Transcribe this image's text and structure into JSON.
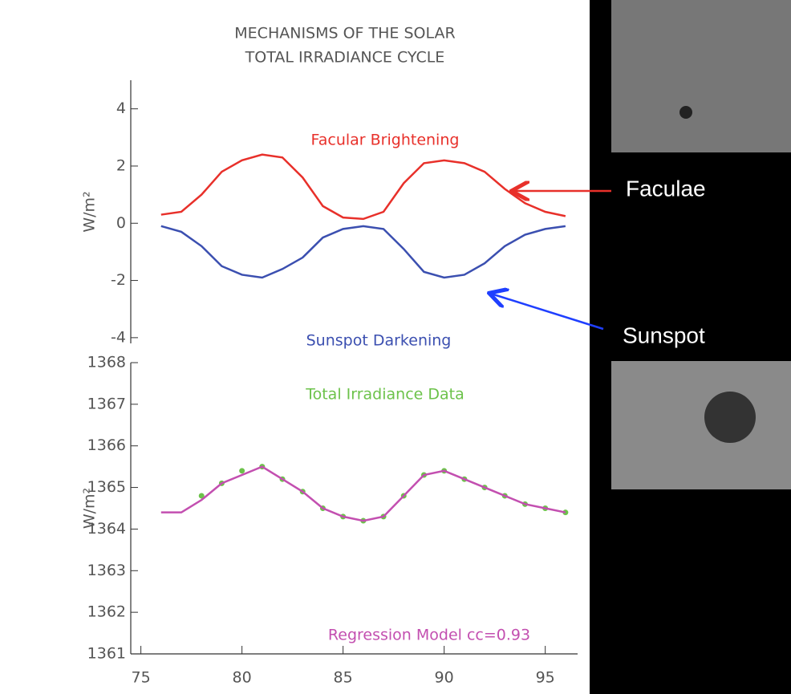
{
  "chart_data": [
    {
      "type": "line",
      "title": [
        "MECHANISMS OF THE SOLAR",
        "TOTAL IRRADIANCE CYCLE"
      ],
      "y_label": "W/m²",
      "x": [
        76,
        77,
        78,
        79,
        80,
        81,
        82,
        83,
        84,
        85,
        86,
        87,
        88,
        89,
        90,
        91,
        92,
        93,
        94,
        95,
        96
      ],
      "xlim": [
        74.5,
        96.6
      ],
      "ylim": [
        -4.2,
        5
      ],
      "yticks": [
        -4,
        -2,
        0,
        2,
        4
      ],
      "series": [
        {
          "name": "Facular Brightening",
          "color": "#e8302a",
          "values": [
            0.3,
            0.4,
            1.0,
            1.8,
            2.2,
            2.4,
            2.3,
            1.6,
            0.6,
            0.2,
            0.15,
            0.4,
            1.4,
            2.1,
            2.2,
            2.1,
            1.8,
            1.2,
            0.7,
            0.4,
            0.25
          ]
        },
        {
          "name": "Sunspot Darkening",
          "color": "#3b4fb0",
          "values": [
            -0.1,
            -0.3,
            -0.8,
            -1.5,
            -1.8,
            -1.9,
            -1.6,
            -1.2,
            -0.5,
            -0.2,
            -0.1,
            -0.2,
            -0.9,
            -1.7,
            -1.9,
            -1.8,
            -1.4,
            -0.8,
            -0.4,
            -0.2,
            -0.1
          ]
        }
      ]
    },
    {
      "type": "line",
      "y_label": "W/m²",
      "x": [
        76,
        77,
        78,
        79,
        80,
        81,
        82,
        83,
        84,
        85,
        86,
        87,
        88,
        89,
        90,
        91,
        92,
        93,
        94,
        95,
        96
      ],
      "xlim": [
        74.5,
        96.6
      ],
      "xticks": [
        75,
        80,
        85,
        90,
        95
      ],
      "ylim": [
        1361,
        1368
      ],
      "yticks": [
        1361,
        1362,
        1363,
        1364,
        1365,
        1366,
        1367,
        1368
      ],
      "series": [
        {
          "name": "Total Irradiance Data",
          "type": "scatter",
          "color": "#6cc24a",
          "values": [
            null,
            null,
            1364.8,
            1365.1,
            1365.4,
            1365.5,
            1365.2,
            1364.9,
            1364.5,
            1364.3,
            1364.2,
            1364.3,
            1364.8,
            1365.3,
            1365.4,
            1365.2,
            1365.0,
            1364.8,
            1364.6,
            1364.5,
            1364.4
          ]
        },
        {
          "name": "Regression Model cc=0.93",
          "type": "line",
          "color": "#c34fb0",
          "values": [
            1364.4,
            1364.4,
            1364.7,
            1365.1,
            1365.3,
            1365.5,
            1365.2,
            1364.9,
            1364.5,
            1364.3,
            1364.2,
            1364.3,
            1364.8,
            1365.3,
            1365.4,
            1365.2,
            1365.0,
            1364.8,
            1364.6,
            1364.5,
            1364.4
          ]
        }
      ]
    }
  ],
  "labels": {
    "faculae": "Faculae",
    "sunspot": "Sunspot"
  }
}
